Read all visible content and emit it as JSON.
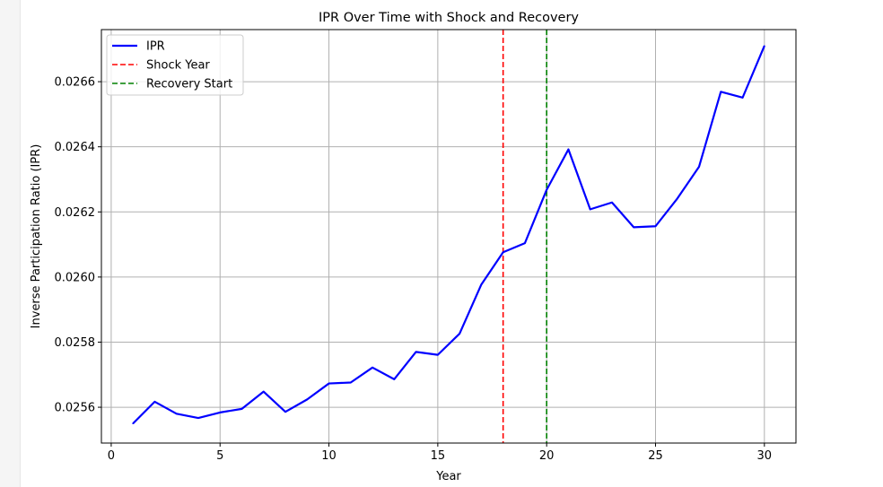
{
  "chart_data": {
    "type": "line",
    "title": "IPR Over Time with Shock and Recovery",
    "xlabel": "Year",
    "ylabel": "Inverse Participation Ratio (IPR)",
    "xlim": [
      -0.45,
      31.45
    ],
    "ylim": [
      0.02549,
      0.02676
    ],
    "x_ticks": [
      0,
      5,
      10,
      15,
      20,
      25,
      30
    ],
    "x_tick_labels": [
      "0",
      "5",
      "10",
      "15",
      "20",
      "25",
      "30"
    ],
    "y_ticks": [
      0.0256,
      0.0258,
      0.026,
      0.0262,
      0.0264,
      0.0266
    ],
    "y_tick_labels": [
      "0.0256",
      "0.0258",
      "0.0260",
      "0.0262",
      "0.0264",
      "0.0266"
    ],
    "grid": true,
    "legend_position": "upper-left",
    "series": [
      {
        "name": "IPR",
        "color": "#0000ff",
        "x": [
          1,
          2,
          3,
          4,
          5,
          6,
          7,
          8,
          9,
          10,
          11,
          12,
          13,
          14,
          15,
          16,
          17,
          18,
          19,
          20,
          21,
          22,
          23,
          24,
          25,
          26,
          27,
          28,
          29,
          30
        ],
        "y": [
          0.02555,
          0.025617,
          0.02558,
          0.025567,
          0.025584,
          0.025595,
          0.025648,
          0.025586,
          0.025624,
          0.025673,
          0.025676,
          0.025722,
          0.025686,
          0.02577,
          0.025761,
          0.025826,
          0.025977,
          0.026076,
          0.026104,
          0.026268,
          0.026392,
          0.026208,
          0.026229,
          0.026153,
          0.026156,
          0.026241,
          0.026339,
          0.026569,
          0.026551,
          0.02671
        ]
      }
    ],
    "vlines": [
      {
        "name": "Shock Year",
        "x": 18,
        "color": "#ff0000",
        "style": "dashed"
      },
      {
        "name": "Recovery Start",
        "x": 20,
        "color": "#008000",
        "style": "dashed"
      }
    ]
  }
}
